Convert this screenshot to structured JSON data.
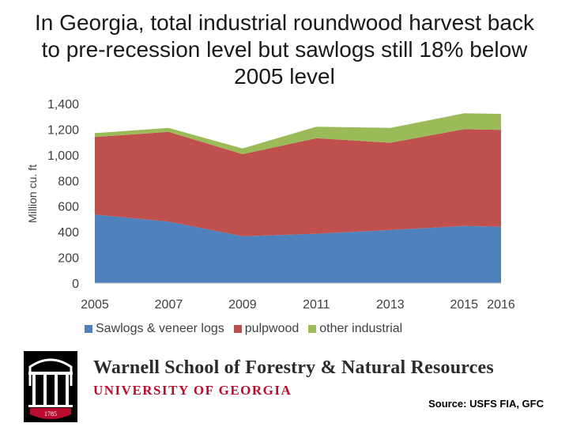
{
  "slide": {
    "title_lines": [
      "In Georgia, total industrial roundwood harvest back",
      "to pre-recession level but sawlogs still 18% below",
      "2005 level"
    ]
  },
  "chart_data": {
    "type": "area",
    "stacked": true,
    "title": "In Georgia, total industrial roundwood harvest back to pre-recession level but sawlogs still 18% below 2005 level",
    "xlabel": "",
    "ylabel": "Million cu. ft",
    "x": [
      2005,
      2007,
      2009,
      2011,
      2013,
      2015,
      2016
    ],
    "x_tick_labels": [
      "2005",
      "2007",
      "2009",
      "2011",
      "2013",
      "2015",
      "2016"
    ],
    "y_tick_labels": [
      "0",
      "200",
      "400",
      "600",
      "800",
      "1,000",
      "1,200",
      "1,400"
    ],
    "ylim": [
      0,
      1400
    ],
    "grid": false,
    "legend_position": "bottom",
    "series": [
      {
        "name": "Sawlogs & veneer logs",
        "color": "#4f81bd",
        "values": [
          535,
          480,
          365,
          385,
          415,
          445,
          440
        ]
      },
      {
        "name": "pulpwood",
        "color": "#c0504d",
        "values": [
          605,
          700,
          640,
          745,
          680,
          755,
          755
        ]
      },
      {
        "name": "other industrial",
        "color": "#9bbb59",
        "values": [
          30,
          30,
          45,
          90,
          115,
          125,
          125
        ]
      }
    ]
  },
  "footer": {
    "school_name": "Warnell School of Forestry & Natural Resources",
    "university_name": "UNIVERSITY OF GEORGIA",
    "logo_year": "1785",
    "source": "Source: USFS FIA, GFC"
  }
}
